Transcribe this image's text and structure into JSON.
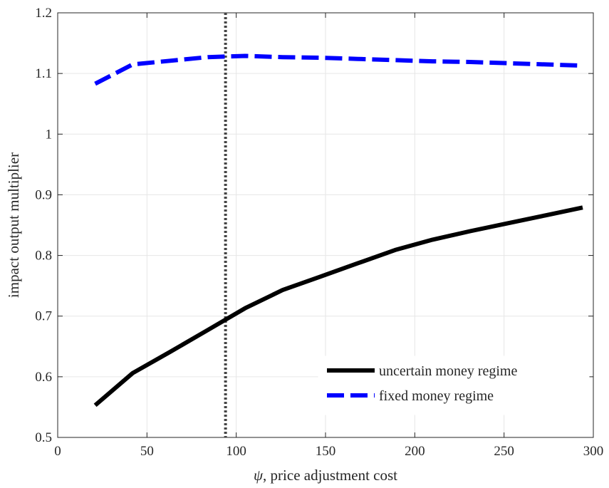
{
  "chart_data": {
    "type": "line",
    "title": "",
    "xlabel_symbol": "ψ",
    "xlabel_text": ", price adjustment cost",
    "ylabel": "impact output multiplier",
    "xlim": [
      0,
      300
    ],
    "ylim": [
      0.5,
      1.2
    ],
    "xticks": [
      0,
      50,
      100,
      150,
      200,
      250,
      300
    ],
    "xtick_labels": [
      "0",
      "50",
      "100",
      "150",
      "200",
      "250",
      "300"
    ],
    "yticks": [
      0.5,
      0.6,
      0.7,
      0.8,
      0.9,
      1.0,
      1.1,
      1.2
    ],
    "ytick_labels": [
      "0.5",
      "0.6",
      "0.7",
      "0.8",
      "0.9",
      "1",
      "1.1",
      "1.2"
    ],
    "grid": true,
    "legend_position": "bottom-right",
    "vertical_line": {
      "x": 94,
      "style": "dotted",
      "color": "#444444"
    },
    "series": [
      {
        "name": "uncertain money regime",
        "color": "#000000",
        "style": "solid",
        "x": [
          21,
          42,
          63,
          84,
          105,
          126,
          147,
          168,
          189,
          210,
          231,
          252,
          273,
          294
        ],
        "y": [
          0.553,
          0.606,
          0.641,
          0.677,
          0.713,
          0.743,
          0.765,
          0.787,
          0.809,
          0.826,
          0.84,
          0.853,
          0.866,
          0.879
        ]
      },
      {
        "name": "fixed money regime",
        "color": "#0000ff",
        "style": "dashed",
        "x": [
          21,
          42,
          63,
          84,
          105,
          126,
          147,
          168,
          189,
          210,
          231,
          252,
          273,
          294
        ],
        "y": [
          1.083,
          1.115,
          1.121,
          1.127,
          1.129,
          1.127,
          1.126,
          1.124,
          1.122,
          1.12,
          1.119,
          1.117,
          1.115,
          1.113
        ]
      }
    ]
  }
}
